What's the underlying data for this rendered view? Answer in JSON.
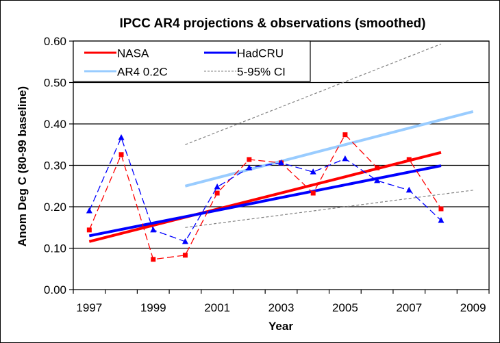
{
  "chart_data": {
    "type": "line",
    "title": "IPCC AR4 projections & observations (smoothed)",
    "xlabel": "Year",
    "ylabel": "Anom Deg C (80-99 baseline)",
    "categories": [
      "1997",
      "1998",
      "1999",
      "2000",
      "2001",
      "2002",
      "2003",
      "2004",
      "2005",
      "2006",
      "2007",
      "2008",
      "2009"
    ],
    "x_tick_labels": [
      "1997",
      "1999",
      "2001",
      "2003",
      "2005",
      "2007",
      "2009"
    ],
    "y_tick_labels": [
      "0.00",
      "0.10",
      "0.20",
      "0.30",
      "0.40",
      "0.50",
      "0.60"
    ],
    "ylim": [
      0.0,
      0.6
    ],
    "y_major_step": 0.1,
    "grid": "horizontal major gridlines",
    "legend_position": "top-left",
    "series": [
      {
        "name": "NASA",
        "key": "nasa",
        "color": "#ff0000",
        "style": "dashed-markers",
        "marker": "square",
        "values": [
          0.144,
          0.326,
          0.073,
          0.083,
          0.233,
          0.314,
          0.306,
          0.233,
          0.374,
          0.294,
          0.314,
          0.195,
          null
        ]
      },
      {
        "name": "HadCRU",
        "key": "hadcru",
        "color": "#0000ff",
        "style": "dashed-markers",
        "marker": "triangle",
        "values": [
          0.19,
          0.367,
          0.144,
          0.116,
          0.248,
          0.294,
          0.306,
          0.284,
          0.316,
          0.263,
          0.24,
          0.167,
          null
        ]
      },
      {
        "name": "NASA trend",
        "key": "nasa_trend",
        "color": "#ff0000",
        "style": "thick-solid",
        "values": [
          0.116,
          null,
          null,
          null,
          null,
          null,
          null,
          null,
          null,
          null,
          null,
          0.331,
          null
        ]
      },
      {
        "name": "HadCRU trend",
        "key": "hadcru_trend",
        "color": "#0000ff",
        "style": "thick-solid",
        "values": [
          0.13,
          null,
          null,
          null,
          null,
          null,
          null,
          null,
          null,
          null,
          null,
          0.299,
          null
        ]
      },
      {
        "name": "AR4 0.2C",
        "key": "ar4",
        "color": "#99ccff",
        "style": "thick-solid",
        "values": [
          null,
          null,
          null,
          0.25,
          null,
          null,
          null,
          null,
          null,
          null,
          null,
          null,
          0.43
        ]
      },
      {
        "name": "5-95% CI upper",
        "key": "ci_upper",
        "color": "#808080",
        "style": "dotted",
        "values": [
          null,
          null,
          null,
          0.35,
          null,
          null,
          null,
          null,
          null,
          null,
          null,
          0.593,
          null
        ]
      },
      {
        "name": "5-95% CI lower",
        "key": "ci_lower",
        "color": "#808080",
        "style": "dotted",
        "values": [
          null,
          null,
          null,
          0.15,
          null,
          null,
          null,
          null,
          null,
          null,
          null,
          null,
          0.24
        ]
      }
    ],
    "legend": [
      {
        "label": "NASA",
        "color": "#ff0000",
        "style": "solid"
      },
      {
        "label": "HadCRU",
        "color": "#0000ff",
        "style": "solid"
      },
      {
        "label": "AR4 0.2C",
        "color": "#99ccff",
        "style": "solid"
      },
      {
        "label": "5-95% CI",
        "color": "#808080",
        "style": "dotted"
      }
    ]
  }
}
